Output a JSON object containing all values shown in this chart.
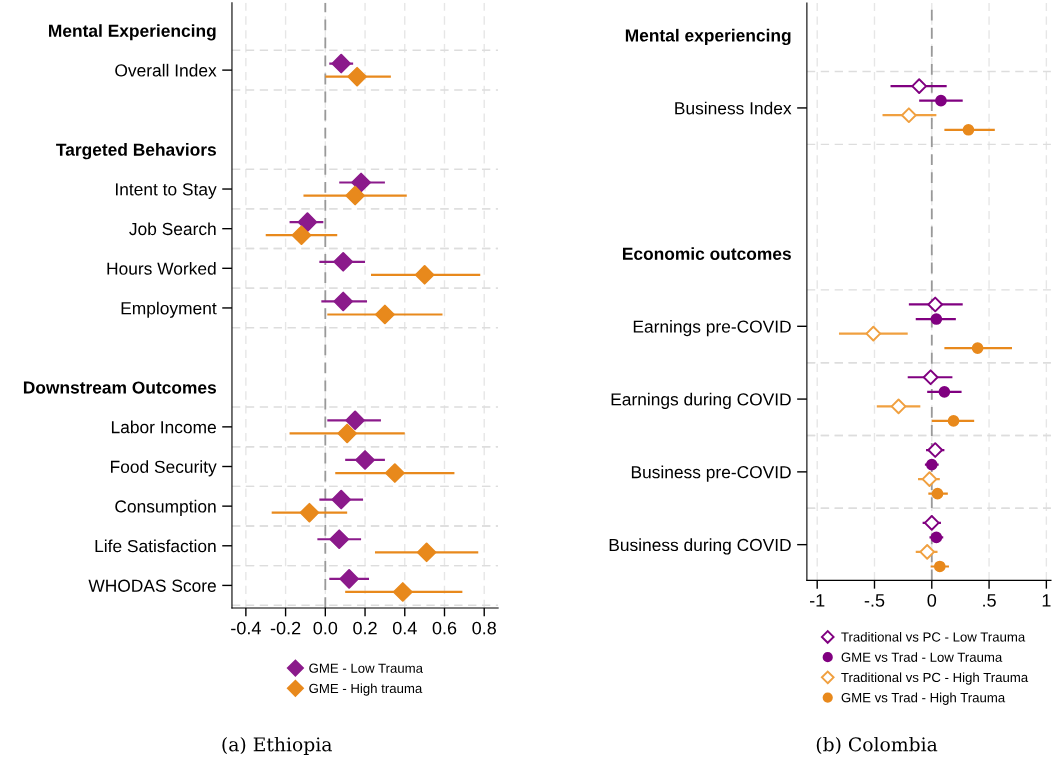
{
  "chart_data": [
    {
      "type": "scatter",
      "orientation": "horizontal",
      "marker": "diamond",
      "grid": true,
      "legend": "bottom",
      "categories": [
        "Mental Experiencing",
        "Overall Index",
        null,
        "Targeted Behaviors",
        "Intent to Stay",
        "Job Search",
        "Hours Worked",
        "Employment",
        null,
        "Downstream Outcomes",
        "Labor Income",
        "Food Security",
        "Consumption",
        "Life Satisfaction",
        "WHODAS Score"
      ],
      "series": [
        {
          "name": "GME - Low Trauma",
          "color": "#8b1a8b",
          "values": [
            null,
            0.08,
            null,
            null,
            0.18,
            -0.09,
            0.09,
            0.09,
            null,
            null,
            0.15,
            0.2,
            0.08,
            0.07,
            0.12
          ],
          "errors": [
            null,
            [
              0.02,
              0.14
            ],
            null,
            null,
            [
              0.07,
              0.3
            ],
            [
              -0.18,
              -0.01
            ],
            [
              -0.03,
              0.2
            ],
            [
              -0.02,
              0.21
            ],
            null,
            null,
            [
              0.01,
              0.28
            ],
            [
              0.1,
              0.3
            ],
            [
              -0.03,
              0.19
            ],
            [
              -0.04,
              0.18
            ],
            [
              0.02,
              0.22
            ]
          ]
        },
        {
          "name": "GME - High trauma",
          "color": "#e8891c",
          "values": [
            null,
            0.16,
            null,
            null,
            0.15,
            -0.12,
            0.5,
            0.3,
            null,
            null,
            0.11,
            0.35,
            -0.08,
            0.51,
            0.39
          ],
          "errors": [
            null,
            [
              0.0,
              0.33
            ],
            null,
            null,
            [
              -0.11,
              0.41
            ],
            [
              -0.3,
              0.06
            ],
            [
              0.23,
              0.78
            ],
            [
              0.01,
              0.59
            ],
            null,
            null,
            [
              -0.18,
              0.4
            ],
            [
              0.05,
              0.65
            ],
            [
              -0.27,
              0.11
            ],
            [
              0.25,
              0.77
            ],
            [
              0.1,
              0.69
            ]
          ]
        }
      ],
      "xlim": [
        -0.47,
        0.87
      ],
      "xticks": [
        {
          "value": -0.4,
          "label": "-0.4"
        },
        {
          "value": -0.2,
          "label": "-0.2"
        },
        {
          "value": 0,
          "label": "0.0"
        },
        {
          "value": 0.2,
          "label": "0.2"
        },
        {
          "value": 0.4,
          "label": "0.4"
        },
        {
          "value": 0.6,
          "label": "0.6"
        },
        {
          "value": 0.8,
          "label": "0.8"
        }
      ],
      "ref_lines": [
        {
          "axis": "x",
          "value": 0,
          "color": "#999999",
          "line_style": "dashed"
        }
      ],
      "annotations": [
        "(a) Ethiopia"
      ]
    },
    {
      "type": "scatter",
      "orientation": "horizontal",
      "marker": "circle",
      "grid": true,
      "legend": "bottom",
      "categories": [
        "Mental experiencing",
        "Business Index",
        null,
        "Economic outcomes",
        "Earnings pre-COVID",
        "Earnings during COVID",
        "Business pre-COVID",
        "Business during COVID"
      ],
      "series": [
        {
          "name": "Traditional vs PC - Low Trauma",
          "color": "#800080",
          "marker": "diamond",
          "values": [
            null,
            -0.11,
            null,
            null,
            0.03,
            -0.01,
            0.03,
            0.0
          ],
          "errors": [
            null,
            [
              -0.36,
              0.13
            ],
            null,
            null,
            [
              -0.2,
              0.27
            ],
            [
              -0.21,
              0.18
            ],
            [
              -0.05,
              0.11
            ],
            [
              -0.08,
              0.08
            ]
          ]
        },
        {
          "name": "GME vs Trad - Low Trauma",
          "color": "#800080",
          "marker": "circle",
          "values": [
            null,
            0.08,
            null,
            null,
            0.04,
            0.11,
            0.0,
            0.04
          ],
          "errors": [
            null,
            [
              -0.11,
              0.27
            ],
            null,
            null,
            [
              -0.14,
              0.21
            ],
            [
              -0.04,
              0.26
            ],
            [
              -0.06,
              0.06
            ],
            [
              -0.02,
              0.1
            ]
          ]
        },
        {
          "name": "Traditional vs PC - High Trauma",
          "color": "#f0a040",
          "marker": "diamond",
          "values": [
            null,
            -0.2,
            null,
            null,
            -0.51,
            -0.29,
            -0.02,
            -0.04
          ],
          "errors": [
            null,
            [
              -0.43,
              0.04
            ],
            null,
            null,
            [
              -0.81,
              -0.21
            ],
            [
              -0.48,
              -0.1
            ],
            [
              -0.12,
              0.07
            ],
            [
              -0.14,
              0.05
            ]
          ]
        },
        {
          "name": "GME vs Trad - High Trauma",
          "color": "#e8891c",
          "marker": "circle",
          "values": [
            null,
            0.32,
            null,
            null,
            0.4,
            0.19,
            0.05,
            0.07
          ],
          "errors": [
            null,
            [
              0.11,
              0.55
            ],
            null,
            null,
            [
              0.11,
              0.7
            ],
            [
              0.0,
              0.37
            ],
            [
              -0.03,
              0.14
            ],
            [
              -0.01,
              0.15
            ]
          ]
        }
      ],
      "xlim": [
        -1.09,
        1.04
      ],
      "xticks": [
        {
          "value": -1,
          "label": "-1"
        },
        {
          "value": -0.5,
          "label": "-.5"
        },
        {
          "value": 0,
          "label": "0"
        },
        {
          "value": 0.5,
          "label": ".5"
        },
        {
          "value": 1,
          "label": "1"
        }
      ],
      "ref_lines": [
        {
          "axis": "x",
          "value": 0,
          "color": "#999999",
          "line_style": "dashed"
        }
      ],
      "annotations": [
        "(b) Colombia"
      ]
    }
  ]
}
